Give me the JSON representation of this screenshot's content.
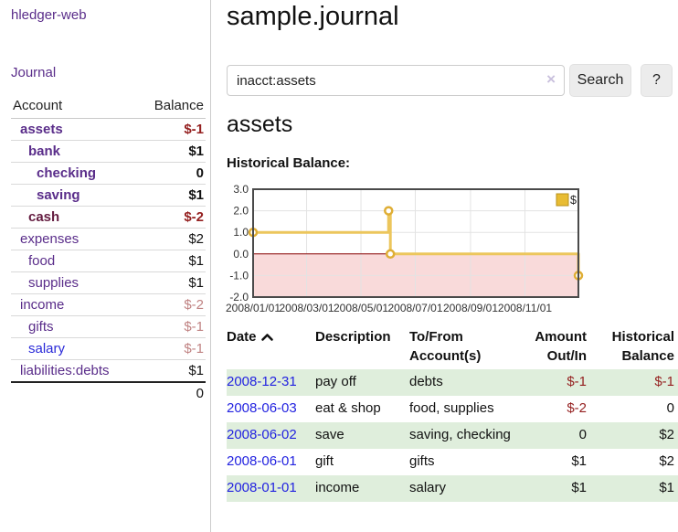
{
  "app": {
    "brand": "hledger-web",
    "nav": {
      "journal": "Journal"
    }
  },
  "sidebar": {
    "headers": {
      "account": "Account",
      "balance": "Balance"
    },
    "accounts": [
      {
        "name": "assets",
        "depth": 0,
        "bold": true,
        "color": "purple",
        "balance": "$-1",
        "balance_color": "red",
        "balance_bold": true
      },
      {
        "name": "bank",
        "depth": 1,
        "bold": true,
        "color": "purple",
        "balance": "$1",
        "balance_color": "black",
        "balance_bold": true
      },
      {
        "name": "checking",
        "depth": 2,
        "bold": true,
        "color": "purple",
        "balance": "0",
        "balance_color": "black",
        "balance_bold": true
      },
      {
        "name": "saving",
        "depth": 2,
        "bold": true,
        "color": "purple",
        "balance": "$1",
        "balance_color": "black",
        "balance_bold": true
      },
      {
        "name": "cash",
        "depth": 1,
        "bold": true,
        "color": "maroon",
        "balance": "$-2",
        "balance_color": "red",
        "balance_bold": true
      },
      {
        "name": "expenses",
        "depth": 0,
        "bold": false,
        "color": "purple",
        "balance": "$2",
        "balance_color": "black",
        "balance_bold": false
      },
      {
        "name": "food",
        "depth": 1,
        "bold": false,
        "color": "purple",
        "balance": "$1",
        "balance_color": "black",
        "balance_bold": false
      },
      {
        "name": "supplies",
        "depth": 1,
        "bold": false,
        "color": "purple",
        "balance": "$1",
        "balance_color": "black",
        "balance_bold": false
      },
      {
        "name": "income",
        "depth": 0,
        "bold": false,
        "color": "purple",
        "balance": "$-2",
        "balance_color": "palered",
        "balance_bold": false
      },
      {
        "name": "gifts",
        "depth": 1,
        "bold": false,
        "color": "purple",
        "balance": "$-1",
        "balance_color": "palered",
        "balance_bold": false
      },
      {
        "name": "salary",
        "depth": 1,
        "bold": false,
        "color": "blue",
        "balance": "$-1",
        "balance_color": "palered",
        "balance_bold": false
      },
      {
        "name": "liabilities:debts",
        "depth": 0,
        "bold": false,
        "color": "purple",
        "balance": "$1",
        "balance_color": "black",
        "balance_bold": false
      }
    ],
    "total": "0"
  },
  "main": {
    "title": "sample.journal",
    "search": {
      "value": "inacct:assets",
      "clear": "×",
      "search_button": "Search",
      "help_button": "?"
    },
    "heading": "assets",
    "chart_title": "Historical Balance:"
  },
  "chart_data": {
    "type": "line",
    "title": "Historical Balance:",
    "legend": "$",
    "legend_position": "top-right",
    "grid": true,
    "xlim": [
      "2008-01-01",
      "2008-12-31"
    ],
    "ylim": [
      -2.0,
      3.0
    ],
    "y_ticks": [
      "3.0",
      "2.0",
      "1.0",
      "0.0",
      "-1.0",
      "-2.0"
    ],
    "x_ticks": [
      "2008/01/01",
      "2008/03/01",
      "2008/05/01",
      "2008/07/01",
      "2008/09/01",
      "2008/11/01"
    ],
    "series": [
      {
        "name": "$",
        "step": true,
        "points": [
          {
            "x": "2008-01-01",
            "y": 1
          },
          {
            "x": "2008-06-01",
            "y": 2
          },
          {
            "x": "2008-06-03",
            "y": 0
          },
          {
            "x": "2008-12-31",
            "y": -1
          }
        ]
      }
    ],
    "colors": {
      "line": "#ecc65c",
      "marker_stroke": "#dfae35",
      "marker_fill": "#ffffff",
      "legend_fill": "#e8bc33",
      "legend_border": "#b8921a",
      "negative_fill": "#f9dada",
      "zero_line": "#8b0000",
      "grid": "#e3e3e3",
      "border": "#4a4a4a"
    }
  },
  "register": {
    "headers": {
      "date": "Date",
      "description": "Description",
      "accounts": "To/From Account(s)",
      "amount": "Amount Out/In",
      "balance": "Historical Balance"
    },
    "rows": [
      {
        "date": "2008-12-31",
        "description": "pay off",
        "accounts": "debts",
        "amount": "$-1",
        "amount_color": "red",
        "balance": "$-1",
        "balance_color": "red"
      },
      {
        "date": "2008-06-03",
        "description": "eat & shop",
        "accounts": "food, supplies",
        "amount": "$-2",
        "amount_color": "red",
        "balance": "0",
        "balance_color": "black"
      },
      {
        "date": "2008-06-02",
        "description": "save",
        "accounts": "saving, checking",
        "amount": "0",
        "amount_color": "black",
        "balance": "$2",
        "balance_color": "black"
      },
      {
        "date": "2008-06-01",
        "description": "gift",
        "accounts": "gifts",
        "amount": "$1",
        "amount_color": "black",
        "balance": "$2",
        "balance_color": "black"
      },
      {
        "date": "2008-01-01",
        "description": "income",
        "accounts": "salary",
        "amount": "$1",
        "amount_color": "black",
        "balance": "$1",
        "balance_color": "black"
      }
    ]
  }
}
